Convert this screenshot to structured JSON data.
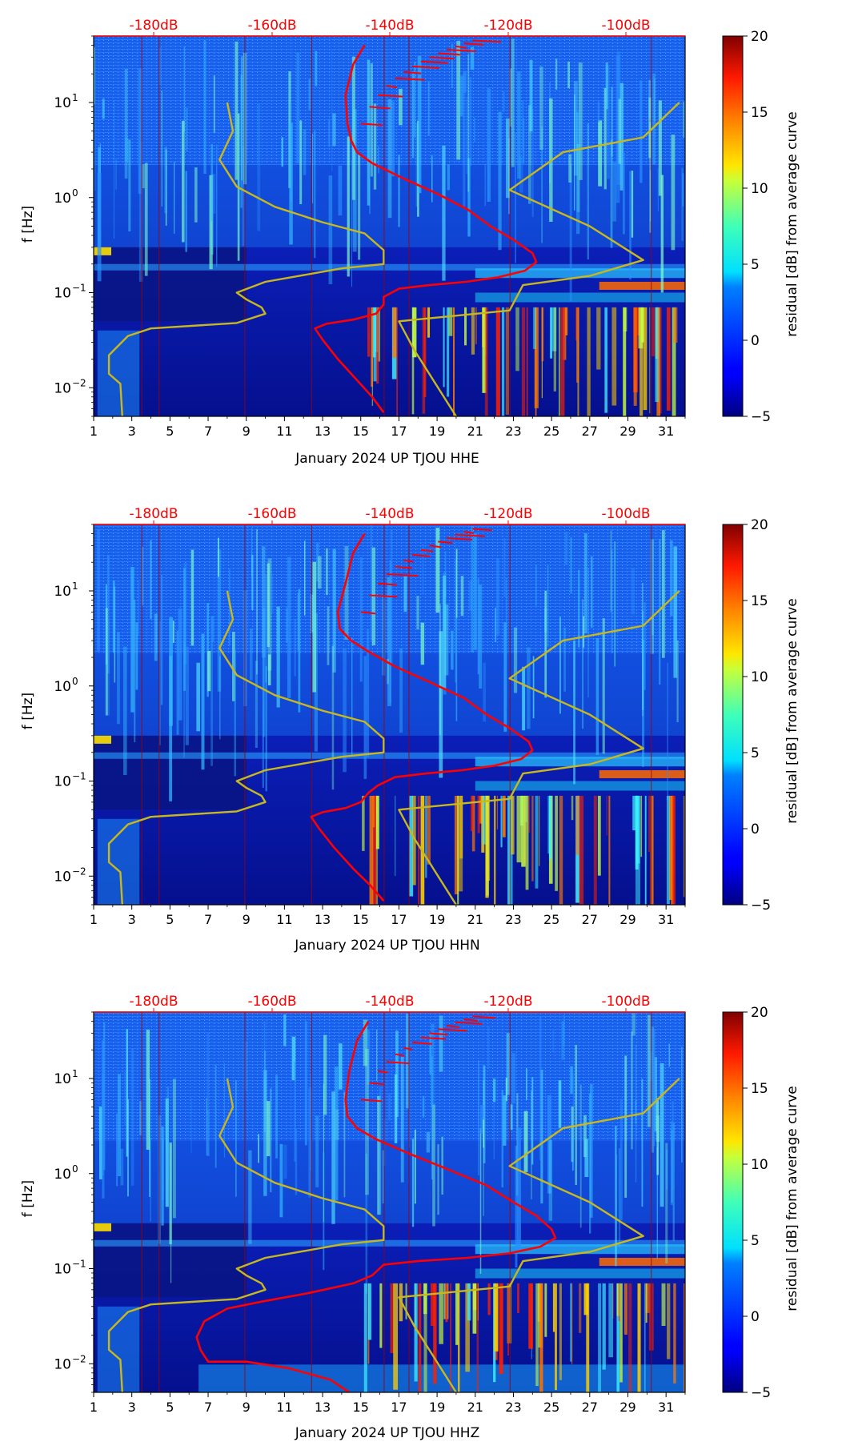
{
  "chart_data": [
    {
      "type": "heatmap",
      "xlabel": "January 2024 UP TJOU  HHE",
      "ylabel": "f [Hz]",
      "colorbar_label": "residual [dB] from average curve",
      "xlim": [
        1,
        32
      ],
      "ylim": [
        0.005,
        50
      ],
      "yscale": "log",
      "x_ticks": [
        "1",
        "3",
        "5",
        "7",
        "9",
        "11",
        "13",
        "15",
        "17",
        "19",
        "21",
        "23",
        "25",
        "27",
        "29",
        "31"
      ],
      "y_ticks": [
        "10^-2",
        "10^-1",
        "10^0",
        "10^1"
      ],
      "top_ticks": [
        "-180dB",
        "-160dB",
        "-140dB",
        "-120dB",
        "-100dB"
      ],
      "top_color": "#ff0000",
      "colorbar_range": [
        -5,
        20
      ],
      "colorbar_ticks": [
        "−5",
        "0",
        "5",
        "10",
        "15",
        "20"
      ],
      "colormap": "jet",
      "grid": false,
      "series": [
        {
          "color": "#ff0000",
          "x": [
            15.2,
            14.6,
            14.2,
            14.3,
            14.5,
            14.8,
            15.6,
            17.2,
            19.0,
            20.6,
            21.8,
            23.0,
            24.0,
            24.2,
            23.6,
            22.2,
            20.5,
            18.6,
            17.0,
            16.2,
            16.2,
            15.8,
            14.6,
            13.2,
            12.6,
            13.0,
            13.8,
            14.8,
            15.6,
            16.2
          ],
          "y": [
            40,
            25,
            12,
            6.0,
            4.0,
            3.0,
            2.3,
            1.6,
            1.1,
            0.75,
            0.5,
            0.36,
            0.26,
            0.21,
            0.17,
            0.145,
            0.13,
            0.12,
            0.11,
            0.09,
            0.075,
            0.06,
            0.052,
            0.047,
            0.042,
            0.032,
            0.02,
            0.012,
            0.008,
            0.0055
          ]
        },
        {
          "color": "#c8b81c",
          "x": [
            8.0,
            8.3,
            7.6,
            8.5,
            10.5,
            13.0,
            15.2,
            16.2,
            16.2,
            14.0,
            10.0,
            8.5,
            9.0,
            9.8,
            10.0,
            8.5,
            4.0,
            2.8,
            1.8,
            1.8,
            2.4,
            2.5
          ],
          "y": [
            10,
            5.0,
            2.5,
            1.3,
            0.8,
            0.55,
            0.42,
            0.28,
            0.2,
            0.18,
            0.13,
            0.1,
            0.085,
            0.07,
            0.06,
            0.048,
            0.042,
            0.035,
            0.022,
            0.014,
            0.011,
            0.005
          ]
        },
        {
          "color": "#c8b81c",
          "x": [
            31.7,
            29.8,
            25.6,
            22.8,
            27.0,
            29.8,
            27.0,
            23.5,
            22.8,
            17.0,
            17.8,
            20.0
          ],
          "y": [
            10,
            4.3,
            3.0,
            1.2,
            0.5,
            0.22,
            0.15,
            0.12,
            0.065,
            0.05,
            0.025,
            0.005
          ]
        }
      ]
    },
    {
      "type": "heatmap",
      "xlabel": "January 2024 UP TJOU  HHN",
      "ylabel": "f [Hz]",
      "colorbar_label": "residual [dB] from average curve",
      "xlim": [
        1,
        32
      ],
      "ylim": [
        0.005,
        50
      ],
      "yscale": "log",
      "x_ticks": [
        "1",
        "3",
        "5",
        "7",
        "9",
        "11",
        "13",
        "15",
        "17",
        "19",
        "21",
        "23",
        "25",
        "27",
        "29",
        "31"
      ],
      "y_ticks": [
        "10^-2",
        "10^-1",
        "10^0",
        "10^1"
      ],
      "top_ticks": [
        "-180dB",
        "-160dB",
        "-140dB",
        "-120dB",
        "-100dB"
      ],
      "top_color": "#ff0000",
      "colorbar_range": [
        -5,
        20
      ],
      "colorbar_ticks": [
        "−5",
        "0",
        "5",
        "10",
        "15",
        "20"
      ],
      "colormap": "jet",
      "grid": false,
      "series": [
        {
          "color": "#ff0000",
          "x": [
            15.2,
            14.6,
            14.2,
            13.8,
            13.9,
            14.5,
            15.4,
            16.8,
            18.6,
            20.4,
            21.6,
            22.8,
            23.8,
            24.0,
            23.4,
            22.0,
            20.3,
            18.4,
            16.8,
            15.9,
            15.4,
            15.0,
            14.2,
            13.0,
            12.4,
            12.8,
            13.6,
            14.6,
            15.5,
            16.2
          ],
          "y": [
            40,
            25,
            12,
            6.0,
            4.0,
            3.0,
            2.3,
            1.6,
            1.1,
            0.75,
            0.5,
            0.36,
            0.26,
            0.21,
            0.17,
            0.145,
            0.13,
            0.12,
            0.11,
            0.09,
            0.075,
            0.06,
            0.052,
            0.047,
            0.042,
            0.032,
            0.02,
            0.012,
            0.008,
            0.0055
          ]
        },
        {
          "color": "#c8b81c",
          "x": [
            8.0,
            8.3,
            7.6,
            8.5,
            10.5,
            13.0,
            15.2,
            16.2,
            16.2,
            14.0,
            10.0,
            8.5,
            9.0,
            9.8,
            10.0,
            8.5,
            4.0,
            2.8,
            1.8,
            1.8,
            2.4,
            2.5
          ],
          "y": [
            10,
            5.0,
            2.5,
            1.3,
            0.8,
            0.55,
            0.42,
            0.28,
            0.2,
            0.18,
            0.13,
            0.1,
            0.085,
            0.07,
            0.06,
            0.048,
            0.042,
            0.035,
            0.022,
            0.014,
            0.011,
            0.005
          ]
        },
        {
          "color": "#c8b81c",
          "x": [
            31.7,
            29.8,
            25.6,
            22.8,
            27.0,
            29.8,
            27.0,
            23.5,
            22.8,
            17.0,
            17.8,
            20.0
          ],
          "y": [
            10,
            4.3,
            3.0,
            1.2,
            0.5,
            0.22,
            0.15,
            0.12,
            0.065,
            0.05,
            0.025,
            0.005
          ]
        }
      ]
    },
    {
      "type": "heatmap",
      "xlabel": "January 2024 UP TJOU  HHZ",
      "ylabel": "f [Hz]",
      "colorbar_label": "residual [dB] from average curve",
      "xlim": [
        1,
        32
      ],
      "ylim": [
        0.005,
        50
      ],
      "yscale": "log",
      "x_ticks": [
        "1",
        "3",
        "5",
        "7",
        "9",
        "11",
        "13",
        "15",
        "17",
        "19",
        "21",
        "23",
        "25",
        "27",
        "29",
        "31"
      ],
      "y_ticks": [
        "10^-2",
        "10^-1",
        "10^0",
        "10^1"
      ],
      "top_ticks": [
        "-180dB",
        "-160dB",
        "-140dB",
        "-120dB",
        "-100dB"
      ],
      "top_color": "#ff0000",
      "colorbar_range": [
        -5,
        20
      ],
      "colorbar_ticks": [
        "−5",
        "0",
        "5",
        "10",
        "15",
        "20"
      ],
      "colormap": "jet",
      "grid": false,
      "series": [
        {
          "color": "#ff0000",
          "x": [
            15.4,
            14.8,
            14.4,
            14.2,
            14.3,
            14.8,
            15.8,
            17.6,
            19.6,
            21.6,
            23.0,
            24.2,
            25.0,
            25.2,
            24.4,
            22.8,
            20.6,
            18.0,
            16.2,
            15.6,
            14.6,
            12.2,
            9.8,
            8.0,
            6.8,
            6.4,
            6.6,
            7.0,
            9.0,
            11.2,
            13.4,
            14.4
          ],
          "y": [
            40,
            25,
            12,
            6.0,
            4.0,
            3.0,
            2.3,
            1.6,
            1.1,
            0.75,
            0.5,
            0.36,
            0.26,
            0.21,
            0.17,
            0.145,
            0.13,
            0.12,
            0.11,
            0.085,
            0.07,
            0.055,
            0.045,
            0.038,
            0.028,
            0.019,
            0.014,
            0.0105,
            0.0105,
            0.009,
            0.0068,
            0.005
          ]
        },
        {
          "color": "#c8b81c",
          "x": [
            8.0,
            8.3,
            7.6,
            8.5,
            10.5,
            13.0,
            15.2,
            16.2,
            16.2,
            14.0,
            10.0,
            8.5,
            9.0,
            9.8,
            10.0,
            8.5,
            4.0,
            2.8,
            1.8,
            1.8,
            2.4,
            2.5
          ],
          "y": [
            10,
            5.0,
            2.5,
            1.3,
            0.8,
            0.55,
            0.42,
            0.28,
            0.2,
            0.18,
            0.13,
            0.1,
            0.085,
            0.07,
            0.06,
            0.048,
            0.042,
            0.035,
            0.022,
            0.014,
            0.011,
            0.005
          ]
        },
        {
          "color": "#c8b81c",
          "x": [
            31.7,
            29.8,
            25.6,
            22.8,
            27.0,
            29.8,
            27.0,
            23.5,
            22.8,
            17.0,
            17.8,
            20.0
          ],
          "y": [
            10,
            4.3,
            3.0,
            1.2,
            0.5,
            0.22,
            0.15,
            0.12,
            0.065,
            0.05,
            0.025,
            0.005
          ]
        }
      ]
    }
  ]
}
